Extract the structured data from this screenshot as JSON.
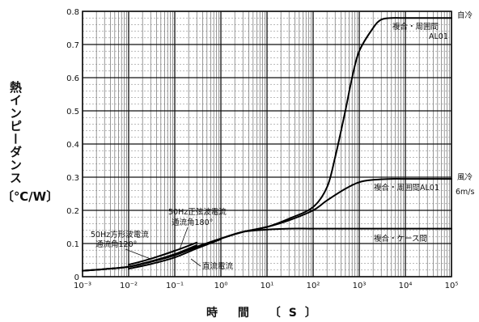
{
  "chart_data": {
    "type": "line",
    "ylabel": "熱インピーダンス",
    "ylabel_unit": "〔℃/W〕",
    "xlabel": "時 間 〔S〕",
    "xscale": "log",
    "xlim": [
      0.001,
      100000
    ],
    "ylim": [
      0,
      0.8
    ],
    "grid": true,
    "x_ticks": [
      {
        "value": 0.001,
        "label": "10⁻³"
      },
      {
        "value": 0.01,
        "label": "10⁻²"
      },
      {
        "value": 0.1,
        "label": "10⁻¹"
      },
      {
        "value": 1,
        "label": "10⁰"
      },
      {
        "value": 10,
        "label": "10¹"
      },
      {
        "value": 100,
        "label": "10²"
      },
      {
        "value": 1000,
        "label": "10³"
      },
      {
        "value": 10000,
        "label": "10⁴"
      },
      {
        "value": 100000,
        "label": "10⁵"
      }
    ],
    "y_ticks": [
      {
        "value": 0,
        "label": "0"
      },
      {
        "value": 0.1,
        "label": "0.1"
      },
      {
        "value": 0.2,
        "label": "0.2"
      },
      {
        "value": 0.3,
        "label": "0.3"
      },
      {
        "value": 0.4,
        "label": "0.4"
      },
      {
        "value": 0.5,
        "label": "0.5"
      },
      {
        "value": 0.6,
        "label": "0.6"
      },
      {
        "value": 0.7,
        "label": "0.7"
      },
      {
        "value": 0.8,
        "label": "0.8"
      }
    ],
    "series": [
      {
        "name": "複合・周囲間 AL01 自冷",
        "x": [
          0.001,
          0.003,
          0.01,
          0.03,
          0.1,
          0.3,
          1,
          3,
          10,
          30,
          100,
          200,
          300,
          500,
          700,
          1000,
          2000,
          3000,
          5000,
          10000,
          100000
        ],
        "y": [
          0.018,
          0.023,
          0.03,
          0.045,
          0.065,
          0.09,
          0.115,
          0.135,
          0.15,
          0.175,
          0.21,
          0.27,
          0.36,
          0.5,
          0.6,
          0.68,
          0.75,
          0.775,
          0.78,
          0.78,
          0.78
        ]
      },
      {
        "name": "複合・周囲間 AL01 風冷 6m/s",
        "x": [
          0.001,
          0.003,
          0.01,
          0.03,
          0.1,
          0.3,
          1,
          3,
          10,
          30,
          100,
          200,
          500,
          1000,
          2000,
          5000,
          10000,
          100000
        ],
        "y": [
          0.018,
          0.023,
          0.03,
          0.045,
          0.065,
          0.09,
          0.115,
          0.135,
          0.15,
          0.17,
          0.2,
          0.23,
          0.265,
          0.285,
          0.292,
          0.295,
          0.295,
          0.295
        ]
      },
      {
        "name": "複合・ケース間",
        "x": [
          0.001,
          0.003,
          0.01,
          0.03,
          0.1,
          0.3,
          1,
          3,
          10,
          30,
          100,
          1000,
          10000,
          100000
        ],
        "y": [
          0.018,
          0.023,
          0.03,
          0.045,
          0.065,
          0.09,
          0.115,
          0.135,
          0.142,
          0.145,
          0.145,
          0.145,
          0.145,
          0.145
        ]
      },
      {
        "name": "直流電流",
        "x": [
          0.01,
          0.03,
          0.1,
          0.3,
          1
        ],
        "y": [
          0.024,
          0.038,
          0.058,
          0.085,
          0.113
        ]
      },
      {
        "name": "50Hz正弦波電流 通流角180°",
        "x": [
          0.01,
          0.03,
          0.1,
          0.3
        ],
        "y": [
          0.03,
          0.046,
          0.068,
          0.095
        ]
      },
      {
        "name": "50Hz方形波電流 通流角120°",
        "x": [
          0.01,
          0.03,
          0.1,
          0.3
        ],
        "y": [
          0.036,
          0.054,
          0.078,
          0.103
        ]
      }
    ],
    "annotations": {
      "natural_cool": "自冷",
      "combo_ambient_top_1": "複合・周囲間",
      "combo_ambient_top_2": "AL01",
      "forced_cool": "風冷",
      "forced_speed": "6m/s",
      "combo_ambient_mid": "複合・周囲間AL01",
      "combo_case": "複合・ケース間",
      "sine_1": "50Hz正弦波電流",
      "sine_2": "通流角180°",
      "square_1": "50Hz方形波電流",
      "square_2": "通流角120°",
      "dc": "直流電流"
    }
  }
}
